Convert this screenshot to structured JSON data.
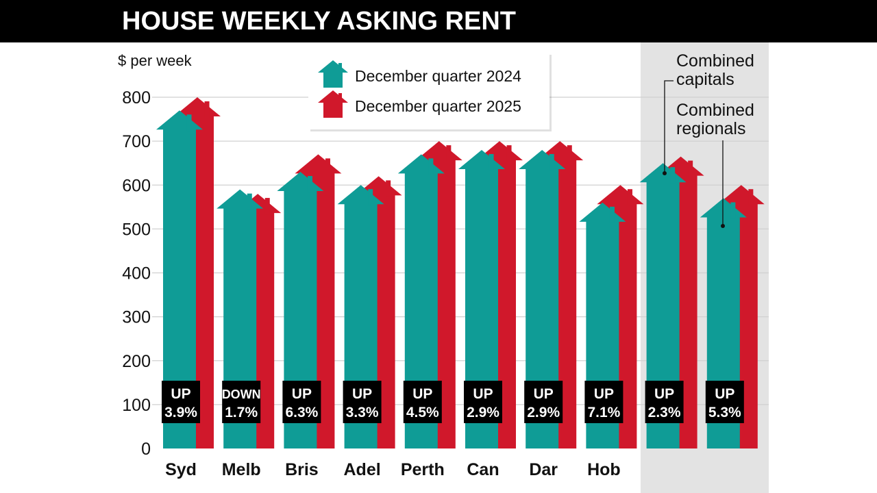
{
  "chart_data": {
    "type": "bar",
    "title": "HOUSE WEEKLY ASKING RENT",
    "ylabel": "$ per week",
    "ylim": [
      0,
      800
    ],
    "yticks": [
      0,
      100,
      200,
      300,
      400,
      500,
      600,
      700,
      800
    ],
    "grid": true,
    "legend_placement": "top-center",
    "categories": [
      "Syd",
      "Melb",
      "Bris",
      "Adel",
      "Perth",
      "Can",
      "Dar",
      "Hob",
      "",
      ""
    ],
    "series": [
      {
        "name": "December quarter 2024",
        "color": "#0f9c96",
        "values": [
          770,
          590,
          630,
          600,
          670,
          680,
          680,
          560,
          650,
          570
        ]
      },
      {
        "name": "December quarter 2025",
        "color": "#d0182b",
        "values": [
          800,
          580,
          670,
          620,
          700,
          700,
          700,
          600,
          665,
          600
        ]
      }
    ],
    "change_labels": [
      [
        "UP",
        "3.9%"
      ],
      [
        "DOWN",
        "1.7%"
      ],
      [
        "UP",
        "6.3%"
      ],
      [
        "UP",
        "3.3%"
      ],
      [
        "UP",
        "4.5%"
      ],
      [
        "UP",
        "2.9%"
      ],
      [
        "UP",
        "2.9%"
      ],
      [
        "UP",
        "7.1%"
      ],
      [
        "UP",
        "2.3%"
      ],
      [
        "UP",
        "5.3%"
      ]
    ],
    "annotations": [
      {
        "lines": [
          "Combined",
          "capitals"
        ],
        "category_index": 8
      },
      {
        "lines": [
          "Combined",
          "regionals"
        ],
        "category_index": 9
      }
    ],
    "bar_style": "house-shaped arrows",
    "highlight_background": "#e3e3e3"
  }
}
